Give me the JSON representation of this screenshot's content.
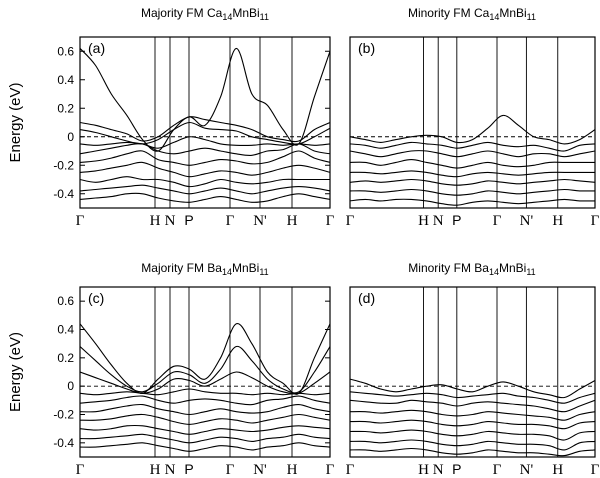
{
  "chart_data": [
    {
      "type": "line",
      "panel_label": "(a)",
      "title": "Majority FM Ca",
      "title_sub1": "14",
      "title_mid": "MnBi",
      "title_sub2": "11",
      "ylabel": "Energy (eV)",
      "ylim": [
        -0.5,
        0.7
      ],
      "yticks": [
        "0.6",
        "0.4",
        "0.2",
        "0",
        "-0.2",
        "-0.4"
      ],
      "xticks": [
        "Γ",
        "H",
        "N",
        "P",
        "Γ",
        "N'",
        "H",
        "Γ"
      ],
      "fermi_level": 0,
      "series": [
        {
          "values": [
            0.62,
            0.5,
            0.3,
            0.15,
            -0.02,
            -0.1,
            0.05,
            0.14,
            0.08,
            0.28,
            0.62,
            0.3,
            0.22,
            0.05,
            -0.05,
            0.28,
            0.6
          ]
        },
        {
          "values": [
            0.1,
            0.08,
            0.05,
            0.02,
            -0.03,
            0.0,
            0.08,
            0.14,
            0.12,
            0.1,
            0.08,
            0.05,
            0.0,
            -0.02,
            -0.03,
            0.05,
            0.1
          ]
        },
        {
          "values": [
            0.05,
            0.03,
            0.0,
            -0.03,
            -0.05,
            -0.02,
            0.05,
            0.1,
            0.06,
            0.05,
            0.04,
            0.0,
            -0.02,
            -0.04,
            -0.05,
            0.0,
            0.06
          ]
        },
        {
          "values": [
            -0.05,
            -0.06,
            -0.05,
            -0.04,
            -0.05,
            -0.08,
            -0.04,
            0.0,
            -0.02,
            -0.05,
            -0.06,
            -0.06,
            -0.05,
            -0.06,
            -0.05,
            -0.06,
            -0.05
          ]
        },
        {
          "values": [
            -0.12,
            -0.1,
            -0.08,
            -0.06,
            -0.05,
            -0.1,
            -0.12,
            -0.1,
            -0.08,
            -0.1,
            -0.12,
            -0.13,
            -0.1,
            -0.09,
            -0.05,
            -0.1,
            -0.12
          ]
        },
        {
          "values": [
            -0.18,
            -0.17,
            -0.15,
            -0.12,
            -0.1,
            -0.16,
            -0.18,
            -0.2,
            -0.18,
            -0.16,
            -0.17,
            -0.19,
            -0.18,
            -0.14,
            -0.1,
            -0.15,
            -0.18
          ]
        },
        {
          "values": [
            -0.25,
            -0.24,
            -0.22,
            -0.2,
            -0.18,
            -0.22,
            -0.25,
            -0.28,
            -0.26,
            -0.24,
            -0.25,
            -0.27,
            -0.25,
            -0.22,
            -0.2,
            -0.22,
            -0.25
          ]
        },
        {
          "values": [
            -0.3,
            -0.32,
            -0.3,
            -0.28,
            -0.3,
            -0.3,
            -0.32,
            -0.35,
            -0.33,
            -0.3,
            -0.32,
            -0.33,
            -0.32,
            -0.3,
            -0.3,
            -0.3,
            -0.3
          ]
        },
        {
          "values": [
            -0.38,
            -0.37,
            -0.36,
            -0.35,
            -0.34,
            -0.36,
            -0.38,
            -0.4,
            -0.38,
            -0.36,
            -0.38,
            -0.4,
            -0.38,
            -0.36,
            -0.35,
            -0.36,
            -0.38
          ]
        },
        {
          "values": [
            -0.44,
            -0.43,
            -0.42,
            -0.4,
            -0.4,
            -0.43,
            -0.45,
            -0.46,
            -0.44,
            -0.42,
            -0.44,
            -0.46,
            -0.45,
            -0.42,
            -0.4,
            -0.42,
            -0.44
          ]
        }
      ]
    },
    {
      "type": "line",
      "panel_label": "(b)",
      "title": "Minority FM Ca",
      "title_sub1": "14",
      "title_mid": "MnBi",
      "title_sub2": "11",
      "ylabel": "",
      "ylim": [
        -0.5,
        0.7
      ],
      "yticks": [],
      "xticks": [
        "Γ",
        "H",
        "N",
        "P",
        "Γ",
        "N'",
        "H",
        "Γ"
      ],
      "fermi_level": 0,
      "series": [
        {
          "values": [
            0.0,
            -0.02,
            -0.04,
            -0.02,
            0.0,
            0.01,
            0.0,
            -0.04,
            -0.02,
            0.06,
            0.15,
            0.08,
            0.0,
            -0.02,
            -0.05,
            -0.02,
            0.05
          ]
        },
        {
          "values": [
            -0.05,
            -0.06,
            -0.08,
            -0.06,
            -0.04,
            -0.05,
            -0.06,
            -0.08,
            -0.06,
            -0.04,
            -0.06,
            -0.07,
            -0.06,
            -0.08,
            -0.1,
            -0.06,
            -0.05
          ]
        },
        {
          "values": [
            -0.1,
            -0.12,
            -0.14,
            -0.12,
            -0.1,
            -0.1,
            -0.12,
            -0.14,
            -0.12,
            -0.1,
            -0.12,
            -0.14,
            -0.12,
            -0.12,
            -0.14,
            -0.12,
            -0.1
          ]
        },
        {
          "values": [
            -0.18,
            -0.18,
            -0.2,
            -0.18,
            -0.16,
            -0.18,
            -0.2,
            -0.22,
            -0.2,
            -0.18,
            -0.2,
            -0.21,
            -0.2,
            -0.18,
            -0.18,
            -0.18,
            -0.18
          ]
        },
        {
          "values": [
            -0.25,
            -0.25,
            -0.26,
            -0.25,
            -0.24,
            -0.25,
            -0.27,
            -0.28,
            -0.26,
            -0.25,
            -0.26,
            -0.27,
            -0.26,
            -0.25,
            -0.25,
            -0.25,
            -0.25
          ]
        },
        {
          "values": [
            -0.32,
            -0.31,
            -0.32,
            -0.31,
            -0.3,
            -0.31,
            -0.33,
            -0.34,
            -0.33,
            -0.31,
            -0.32,
            -0.33,
            -0.32,
            -0.31,
            -0.3,
            -0.31,
            -0.32
          ]
        },
        {
          "values": [
            -0.38,
            -0.38,
            -0.39,
            -0.38,
            -0.37,
            -0.38,
            -0.4,
            -0.41,
            -0.4,
            -0.38,
            -0.39,
            -0.4,
            -0.39,
            -0.38,
            -0.37,
            -0.38,
            -0.38
          ]
        },
        {
          "values": [
            -0.45,
            -0.44,
            -0.45,
            -0.44,
            -0.44,
            -0.45,
            -0.47,
            -0.48,
            -0.46,
            -0.45,
            -0.46,
            -0.47,
            -0.46,
            -0.45,
            -0.44,
            -0.45,
            -0.45
          ]
        }
      ]
    },
    {
      "type": "line",
      "panel_label": "(c)",
      "title": "Majority FM Ba",
      "title_sub1": "14",
      "title_mid": "MnBi",
      "title_sub2": "11",
      "ylabel": "Energy  (eV)",
      "ylim": [
        -0.5,
        0.7
      ],
      "yticks": [
        "0.6",
        "0.4",
        "0.2",
        "0",
        "-0.2",
        "-0.4"
      ],
      "xticks": [
        "Γ",
        "H",
        "N",
        "P",
        "Γ",
        "N'",
        "H",
        "Γ"
      ],
      "fermi_level": 0,
      "series": [
        {
          "values": [
            0.44,
            0.3,
            0.15,
            0.02,
            -0.05,
            0.05,
            0.14,
            0.12,
            0.05,
            0.2,
            0.44,
            0.3,
            0.1,
            0.02,
            -0.05,
            0.2,
            0.44
          ]
        },
        {
          "values": [
            0.28,
            0.18,
            0.08,
            0.0,
            -0.04,
            0.02,
            0.1,
            0.08,
            0.02,
            0.12,
            0.28,
            0.18,
            0.05,
            -0.02,
            -0.04,
            0.1,
            0.28
          ]
        },
        {
          "values": [
            0.1,
            0.06,
            0.02,
            -0.02,
            -0.05,
            -0.02,
            0.05,
            0.04,
            0.0,
            0.05,
            0.1,
            0.06,
            0.0,
            -0.04,
            -0.05,
            0.02,
            0.1
          ]
        },
        {
          "values": [
            -0.05,
            -0.06,
            -0.05,
            -0.04,
            -0.05,
            -0.06,
            -0.04,
            -0.02,
            -0.04,
            -0.05,
            -0.05,
            -0.06,
            -0.05,
            -0.06,
            -0.05,
            -0.06,
            -0.05
          ]
        },
        {
          "values": [
            -0.12,
            -0.11,
            -0.1,
            -0.08,
            -0.07,
            -0.1,
            -0.12,
            -0.1,
            -0.09,
            -0.1,
            -0.12,
            -0.13,
            -0.1,
            -0.09,
            -0.07,
            -0.1,
            -0.12
          ]
        },
        {
          "values": [
            -0.18,
            -0.18,
            -0.16,
            -0.14,
            -0.13,
            -0.16,
            -0.18,
            -0.2,
            -0.18,
            -0.16,
            -0.18,
            -0.19,
            -0.18,
            -0.15,
            -0.13,
            -0.16,
            -0.18
          ]
        },
        {
          "values": [
            -0.24,
            -0.24,
            -0.23,
            -0.21,
            -0.2,
            -0.22,
            -0.25,
            -0.27,
            -0.25,
            -0.23,
            -0.24,
            -0.26,
            -0.24,
            -0.22,
            -0.2,
            -0.22,
            -0.24
          ]
        },
        {
          "values": [
            -0.3,
            -0.31,
            -0.3,
            -0.28,
            -0.28,
            -0.3,
            -0.32,
            -0.34,
            -0.32,
            -0.3,
            -0.31,
            -0.32,
            -0.31,
            -0.29,
            -0.28,
            -0.29,
            -0.3
          ]
        },
        {
          "values": [
            -0.37,
            -0.37,
            -0.36,
            -0.35,
            -0.34,
            -0.36,
            -0.38,
            -0.4,
            -0.38,
            -0.36,
            -0.37,
            -0.39,
            -0.37,
            -0.36,
            -0.34,
            -0.36,
            -0.37
          ]
        },
        {
          "values": [
            -0.43,
            -0.43,
            -0.42,
            -0.41,
            -0.4,
            -0.42,
            -0.44,
            -0.46,
            -0.44,
            -0.42,
            -0.43,
            -0.45,
            -0.43,
            -0.42,
            -0.4,
            -0.42,
            -0.43
          ]
        }
      ]
    },
    {
      "type": "line",
      "panel_label": "(d)",
      "title": "Minority FM Ba",
      "title_sub1": "14",
      "title_mid": "MnBi",
      "title_sub2": "11",
      "ylabel": "",
      "ylim": [
        -0.5,
        0.7
      ],
      "yticks": [],
      "xticks": [
        "Γ",
        "H",
        "N",
        "P",
        "Γ",
        "N'",
        "H",
        "Γ"
      ],
      "fermi_level": 0,
      "series": [
        {
          "values": [
            0.05,
            0.02,
            -0.02,
            -0.04,
            -0.02,
            0.0,
            0.01,
            -0.02,
            -0.04,
            0.0,
            0.03,
            0.0,
            -0.04,
            -0.06,
            -0.08,
            -0.02,
            0.04
          ]
        },
        {
          "values": [
            -0.04,
            -0.05,
            -0.06,
            -0.07,
            -0.06,
            -0.05,
            -0.06,
            -0.08,
            -0.07,
            -0.06,
            -0.05,
            -0.07,
            -0.08,
            -0.1,
            -0.12,
            -0.08,
            -0.05
          ]
        },
        {
          "values": [
            -0.1,
            -0.11,
            -0.12,
            -0.12,
            -0.1,
            -0.11,
            -0.12,
            -0.14,
            -0.12,
            -0.11,
            -0.12,
            -0.13,
            -0.14,
            -0.16,
            -0.18,
            -0.14,
            -0.1
          ]
        },
        {
          "values": [
            -0.18,
            -0.18,
            -0.19,
            -0.18,
            -0.17,
            -0.18,
            -0.2,
            -0.21,
            -0.2,
            -0.18,
            -0.19,
            -0.2,
            -0.21,
            -0.22,
            -0.24,
            -0.2,
            -0.18
          ]
        },
        {
          "values": [
            -0.25,
            -0.25,
            -0.26,
            -0.25,
            -0.24,
            -0.25,
            -0.27,
            -0.28,
            -0.27,
            -0.25,
            -0.26,
            -0.27,
            -0.27,
            -0.28,
            -0.3,
            -0.26,
            -0.25
          ]
        },
        {
          "values": [
            -0.32,
            -0.32,
            -0.33,
            -0.32,
            -0.31,
            -0.32,
            -0.34,
            -0.35,
            -0.34,
            -0.32,
            -0.33,
            -0.34,
            -0.34,
            -0.35,
            -0.38,
            -0.33,
            -0.32
          ]
        },
        {
          "values": [
            -0.39,
            -0.39,
            -0.4,
            -0.39,
            -0.38,
            -0.39,
            -0.41,
            -0.42,
            -0.41,
            -0.39,
            -0.4,
            -0.41,
            -0.41,
            -0.42,
            -0.45,
            -0.4,
            -0.39
          ]
        },
        {
          "values": [
            -0.45,
            -0.45,
            -0.46,
            -0.45,
            -0.44,
            -0.45,
            -0.47,
            -0.48,
            -0.47,
            -0.45,
            -0.46,
            -0.47,
            -0.47,
            -0.48,
            -0.49,
            -0.46,
            -0.45
          ]
        }
      ]
    }
  ]
}
